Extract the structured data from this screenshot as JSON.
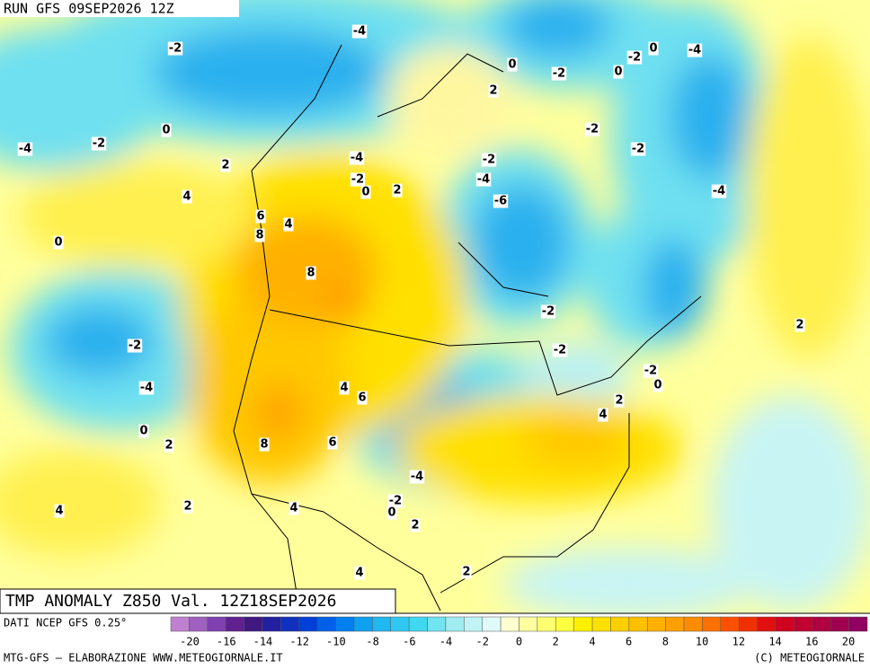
{
  "header": {
    "run": "RUN GFS 09SEP2026 12Z"
  },
  "map": {
    "title": "TMP ANOMALY Z850 Val. 12Z18SEP2026",
    "contour_labels": [
      -2,
      -4,
      0,
      -2,
      0,
      -2,
      0,
      -4,
      2,
      -2,
      -2,
      -4,
      -2,
      0,
      2,
      -4,
      -2,
      -4,
      -2,
      0,
      2,
      -4,
      4,
      -6,
      6,
      4,
      8,
      0,
      8,
      -2,
      2,
      -2,
      -2,
      -2,
      0,
      -4,
      4,
      6,
      2,
      4,
      0,
      2,
      8,
      6,
      -4,
      -2,
      0,
      4,
      2,
      4,
      2,
      2,
      4
    ]
  },
  "legend": {
    "source": "DATI NCEP GFS 0.25°",
    "labels": [
      -20,
      -16,
      -14,
      -12,
      -10,
      -8,
      -6,
      -4,
      -2,
      0,
      2,
      4,
      6,
      8,
      10,
      12,
      14,
      16,
      20
    ],
    "colors": [
      "#c080d0",
      "#a060c0",
      "#8040b0",
      "#602090",
      "#401880",
      "#2020a0",
      "#1030c0",
      "#0040d8",
      "#0060e8",
      "#0080f0",
      "#10a0f0",
      "#20b8f0",
      "#30c8f0",
      "#40d8f0",
      "#70e4f0",
      "#a0ecf0",
      "#c0f4f4",
      "#e0fafa",
      "#ffffd0",
      "#ffffa0",
      "#ffff70",
      "#ffff40",
      "#fff000",
      "#ffe000",
      "#ffd000",
      "#ffc000",
      "#ffb000",
      "#ffa000",
      "#ff8c00",
      "#ff7000",
      "#ff5000",
      "#f03000",
      "#e01010",
      "#d00020",
      "#c00030",
      "#b00040",
      "#a00050",
      "#900060"
    ]
  },
  "footer": {
    "left": "MTG-GFS — ELABORAZIONE WWW.METEOGIORNALE.IT",
    "right": "(C) METEOGIORNALE"
  }
}
